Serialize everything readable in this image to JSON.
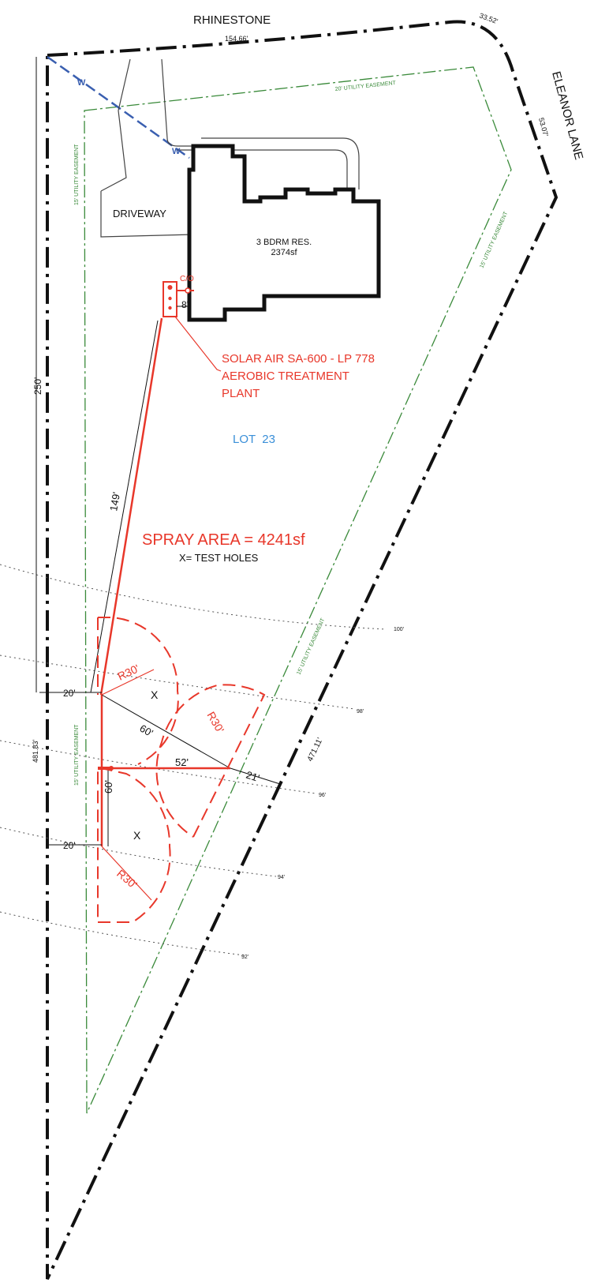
{
  "colors": {
    "boundary": "#111111",
    "easement": "#3a8a3a",
    "system": "#e8372a",
    "water_line": "#3a5fb0",
    "lot_label": "#3a8fd8",
    "contour": "#555555"
  },
  "streets": {
    "north": "RHINESTONE",
    "east": "ELEANOR LANE"
  },
  "dimensions": {
    "north_front": "154.66'",
    "corner_arc": "33.52'",
    "east_front": "53.07'",
    "west_side": "250'",
    "west_lower": "481.83'",
    "east_side": "471.11'",
    "line_to_tank": "149'",
    "setback_upper": "20'",
    "setback_lower": "20'",
    "diag_60": "60'",
    "len_52": "52'",
    "len_21": "21'",
    "vert_60": "60'",
    "tank_offset": "8'"
  },
  "easements": {
    "top": "20' UTILITY EASEMENT",
    "left_upper": "15' UTILITY EASEMENT",
    "right_upper": "15' UTILITY EASEMENT",
    "right_mid": "15' UTILITY EASEMENT",
    "left_lower": "15' UTILITY EASEMENT"
  },
  "water_marks": [
    "W",
    "W"
  ],
  "labels": {
    "driveway": "DRIVEWAY",
    "residence_line1": "3 BDRM RES.",
    "residence_line2": "2374sf",
    "cleanout": "C/O",
    "plant_line1": "SOLAR AIR SA-600 - LP 778",
    "plant_line2": "AEROBIC TREATMENT",
    "plant_line3": "PLANT",
    "lot": "LOT  23",
    "spray_area": "SPRAY AREA = 4241sf",
    "test_holes_note": "X= TEST HOLES",
    "test_hole_mark_1": "X",
    "test_hole_mark_2": "X"
  },
  "spray_radii": [
    "R30'",
    "R30'",
    "R30'"
  ],
  "contours": [
    "100'",
    "98'",
    "96'",
    "94'",
    "92'"
  ]
}
